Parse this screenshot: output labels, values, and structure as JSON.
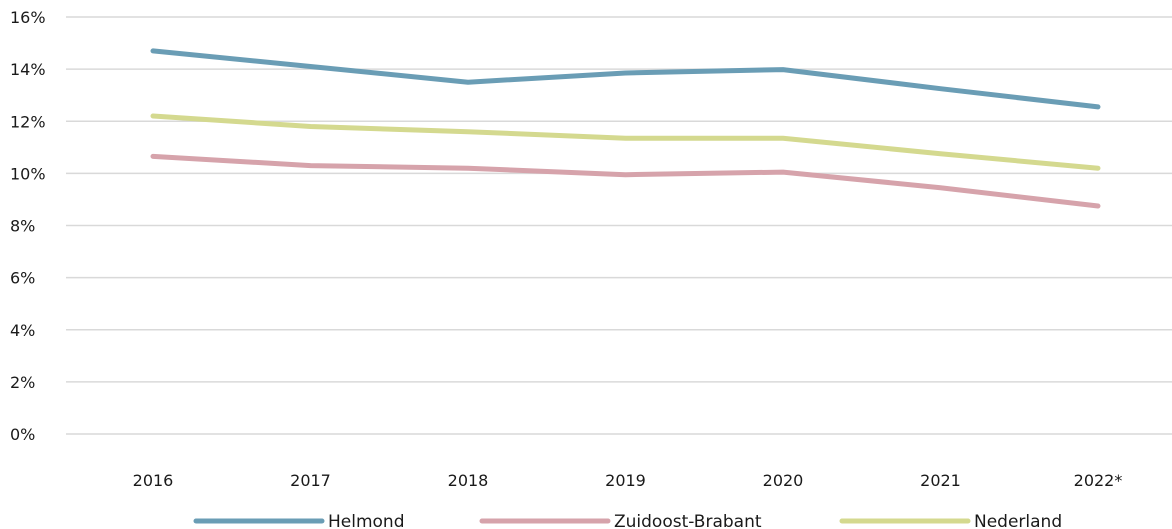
{
  "chart_data": {
    "type": "line",
    "categories": [
      "2016",
      "2017",
      "2018",
      "2019",
      "2020",
      "2021",
      "2022*"
    ],
    "ylim": [
      0,
      16
    ],
    "yticks": [
      "0%",
      "2%",
      "4%",
      "6%",
      "8%",
      "10%",
      "12%",
      "14%",
      "16%"
    ],
    "grid": true,
    "legend_position": "bottom",
    "series": [
      {
        "name": "Helmond",
        "color": "#6a9db5",
        "values": [
          14.7,
          14.1,
          13.5,
          13.85,
          13.98,
          13.25,
          12.55
        ]
      },
      {
        "name": "Zuidoost-Brabant",
        "color": "#d6a3ab",
        "values": [
          10.65,
          10.3,
          10.2,
          9.95,
          10.05,
          9.45,
          8.75
        ]
      },
      {
        "name": "Nederland",
        "color": "#d4d98f",
        "values": [
          12.2,
          11.8,
          11.6,
          11.35,
          11.35,
          10.75,
          10.2
        ]
      }
    ]
  }
}
